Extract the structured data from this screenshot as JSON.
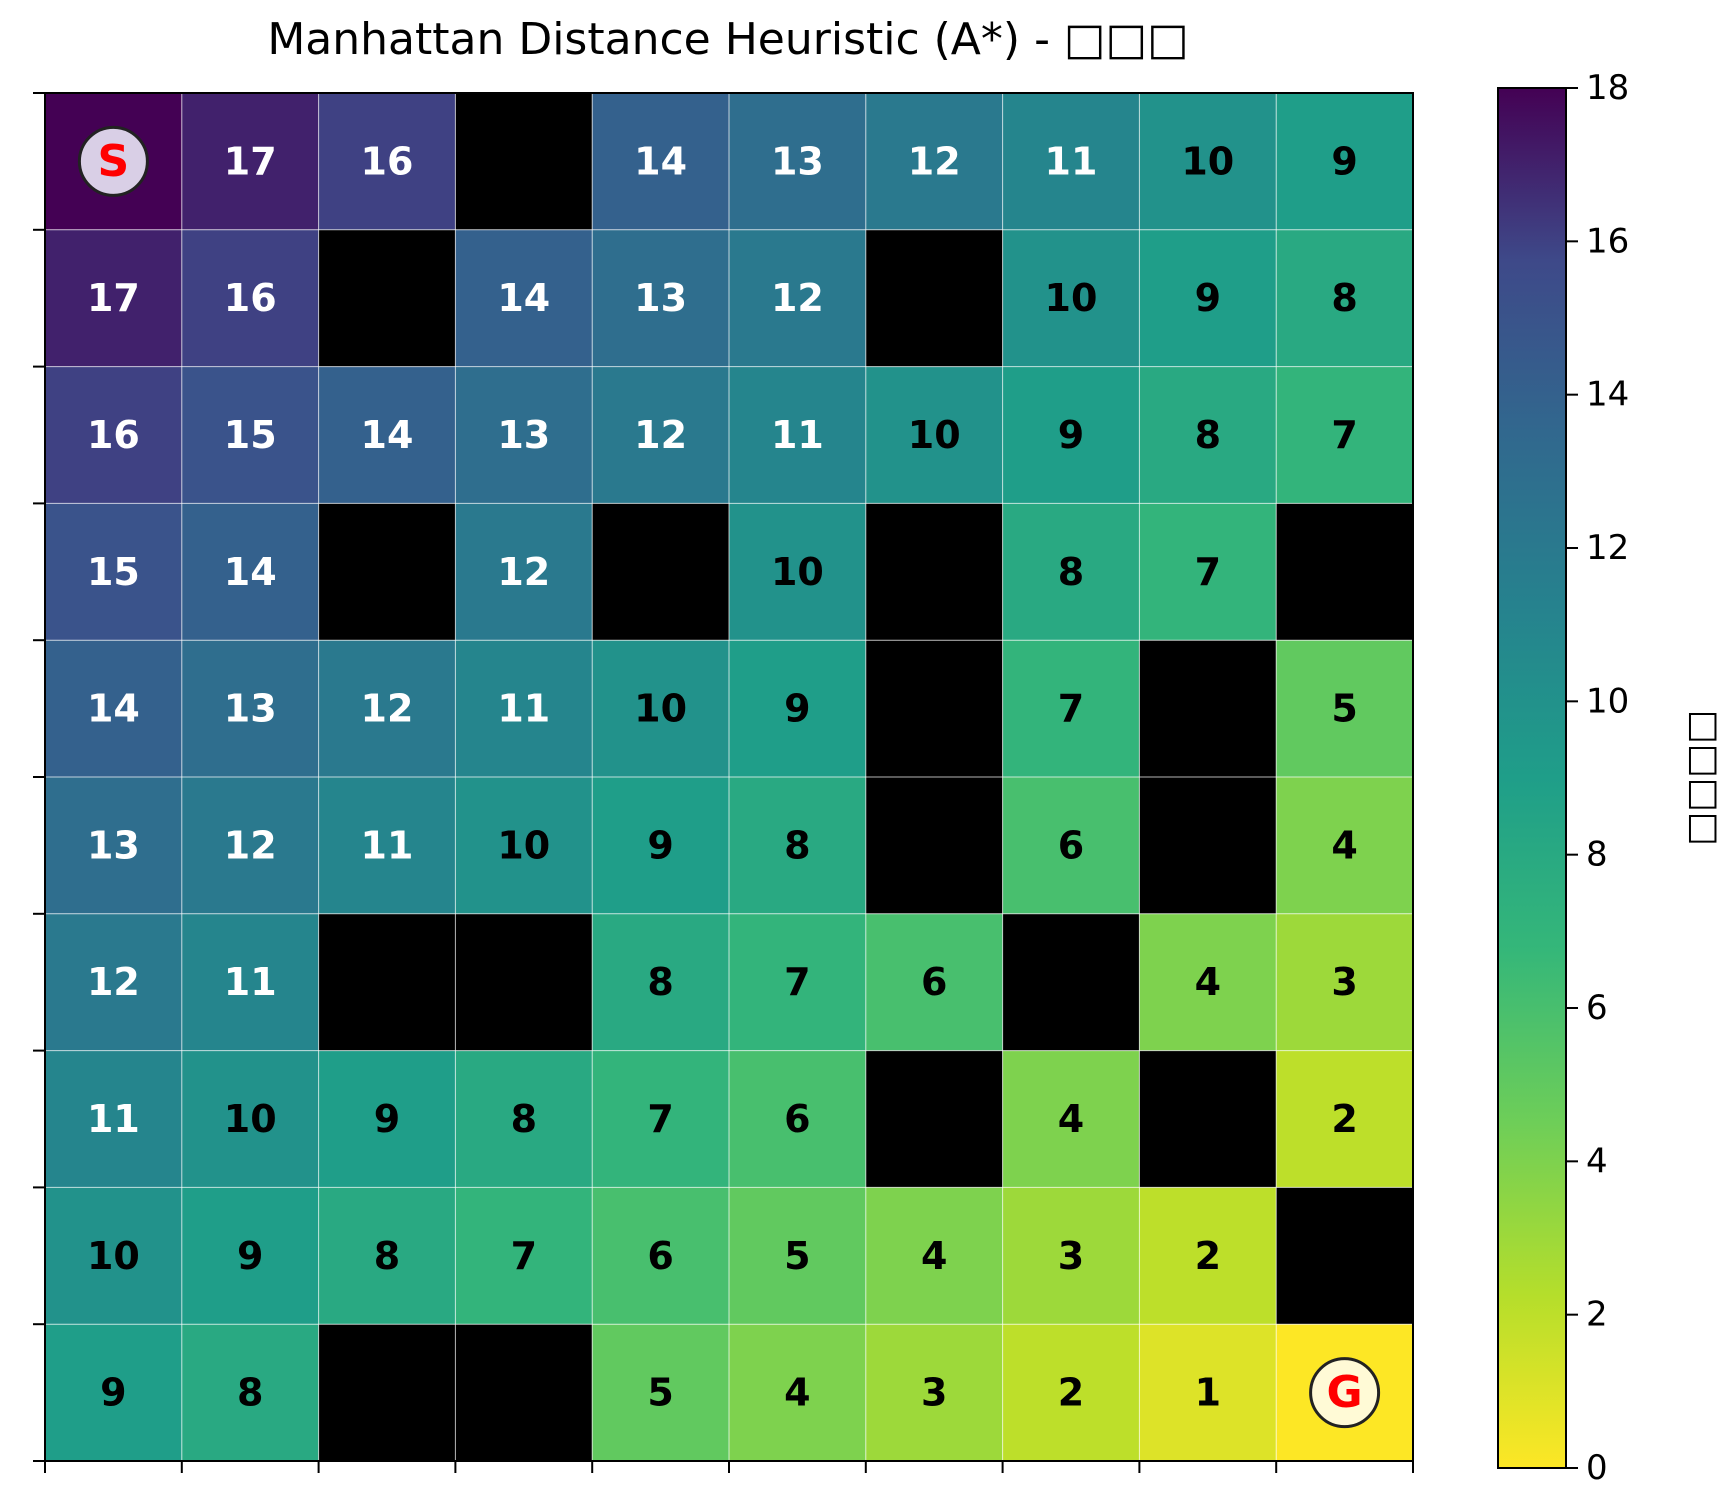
{
  "chart_data": {
    "type": "heatmap",
    "title": "Manhattan Distance Heuristic (A*) - □□□",
    "colorbar_label": "□□□□",
    "colormap": "viridis_r",
    "zlim": [
      0,
      18
    ],
    "colorbar_ticks": [
      0,
      2,
      4,
      6,
      8,
      10,
      12,
      14,
      16,
      18
    ],
    "rows": 10,
    "cols": 10,
    "grid": true,
    "obstacle_color": "#000000",
    "values": [
      [
        18,
        17,
        16,
        null,
        14,
        13,
        12,
        11,
        10,
        9
      ],
      [
        17,
        16,
        null,
        14,
        13,
        12,
        null,
        10,
        9,
        8
      ],
      [
        16,
        15,
        14,
        13,
        12,
        11,
        10,
        9,
        8,
        7
      ],
      [
        15,
        14,
        null,
        12,
        null,
        10,
        null,
        8,
        7,
        null
      ],
      [
        14,
        13,
        12,
        11,
        10,
        9,
        null,
        7,
        null,
        5
      ],
      [
        13,
        12,
        11,
        10,
        9,
        8,
        null,
        6,
        null,
        4
      ],
      [
        12,
        11,
        null,
        null,
        8,
        7,
        6,
        null,
        4,
        3
      ],
      [
        11,
        10,
        9,
        8,
        7,
        6,
        null,
        4,
        null,
        2
      ],
      [
        10,
        9,
        8,
        7,
        6,
        5,
        4,
        3,
        2,
        null
      ],
      [
        9,
        8,
        null,
        null,
        5,
        4,
        3,
        2,
        1,
        0
      ]
    ],
    "start": {
      "label": "S",
      "row": 0,
      "col": 0,
      "color": "#ff0000"
    },
    "goal": {
      "label": "G",
      "row": 9,
      "col": 9,
      "color": "#ff0000"
    }
  }
}
